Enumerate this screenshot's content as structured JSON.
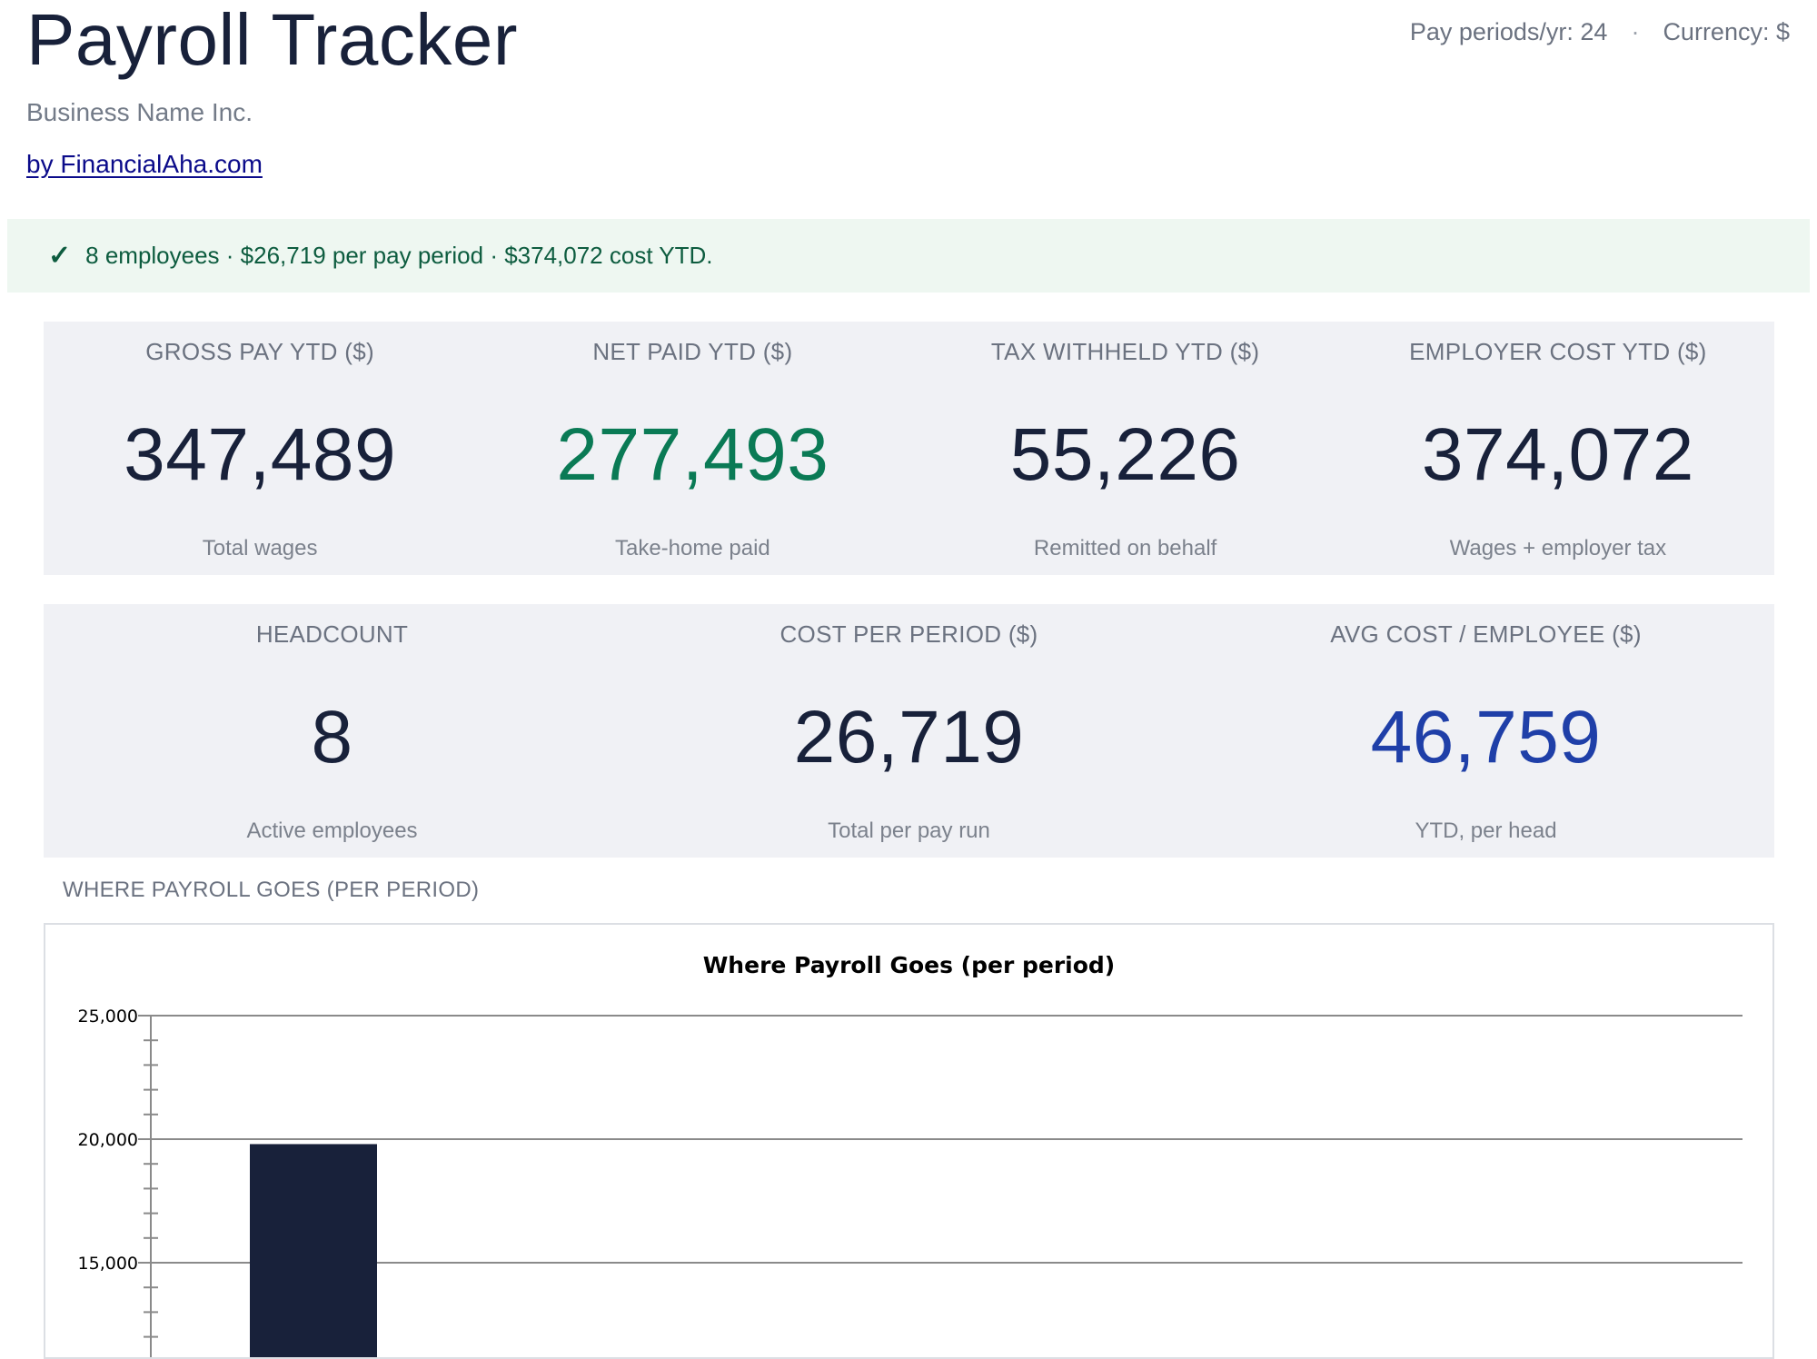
{
  "header": {
    "title": "Payroll Tracker",
    "pay_periods": "Pay periods/yr: 24",
    "separator": "·",
    "currency": "Currency: $",
    "business_name": "Business Name Inc.",
    "byline": "by FinancialAha.com"
  },
  "status": {
    "icon": "check-icon",
    "text": "8 employees · $26,719 per pay period · $374,072 cost YTD."
  },
  "kpis_row1": [
    {
      "label": "GROSS PAY YTD ($)",
      "value": "347,489",
      "sub": "Total wages"
    },
    {
      "label": "NET PAID YTD ($)",
      "value": "277,493",
      "sub": "Take-home paid"
    },
    {
      "label": "TAX WITHHELD YTD ($)",
      "value": "55,226",
      "sub": "Remitted on behalf"
    },
    {
      "label": "EMPLOYER COST YTD ($)",
      "value": "374,072",
      "sub": "Wages + employer tax"
    }
  ],
  "kpis_row2": [
    {
      "label": "HEADCOUNT",
      "value": "8",
      "sub": "Active employees"
    },
    {
      "label": "COST PER PERIOD ($)",
      "value": "26,719",
      "sub": "Total per pay run"
    },
    {
      "label": "AVG COST / EMPLOYEE ($)",
      "value": "46,759",
      "sub": "YTD, per head"
    }
  ],
  "colors": {
    "accent_green": "#0a7a55",
    "accent_blue": "#1f3fa8",
    "bar": "#18213a",
    "status_bg": "#eef7f1"
  },
  "section": {
    "label": "WHERE PAYROLL GOES (PER PERIOD)"
  },
  "chart_data": {
    "type": "bar",
    "title": "Where Payroll Goes (per period)",
    "categories": [
      ""
    ],
    "values": [
      19800
    ],
    "ylim_visible": [
      12000,
      25000
    ],
    "yticks": [
      15000,
      20000,
      25000
    ],
    "ytick_labels": [
      "15,000",
      "20,000",
      "25,000"
    ],
    "grid": true,
    "bar_color": "#18213a"
  }
}
